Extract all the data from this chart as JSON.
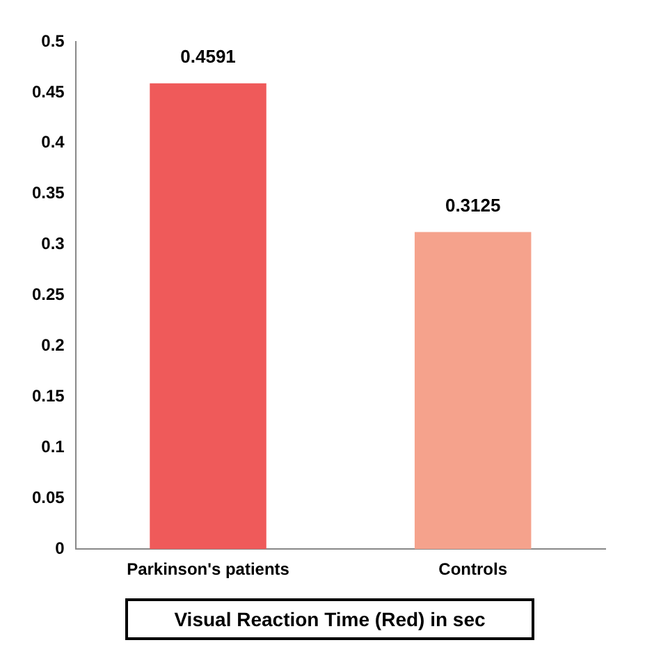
{
  "chart_data": {
    "type": "bar",
    "xlabel": "Visual Reaction Time (Red) in sec",
    "categories": [
      "Parkinson's patients",
      "Controls"
    ],
    "values": [
      0.4591,
      0.3125
    ],
    "colors": [
      "#ef5a5a",
      "#f5a28c"
    ],
    "ylim": [
      0,
      0.5
    ],
    "yticks": [
      0,
      0.05,
      0.1,
      0.15,
      0.2,
      0.25,
      0.3,
      0.35,
      0.4,
      0.45,
      0.5
    ],
    "data_labels": true
  }
}
